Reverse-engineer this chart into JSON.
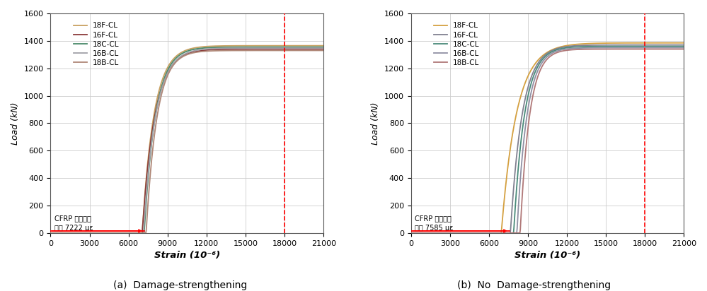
{
  "title_a": "(a)  Damage-strengthening",
  "title_b": "(b)  No  Damage-strengthening",
  "ylabel": "Load (kN)",
  "xlabel": "Strain (10⁻⁶)",
  "xlim": [
    0,
    21000
  ],
  "ylim": [
    0,
    1600
  ],
  "xticks": [
    0,
    3000,
    6000,
    9000,
    12000,
    15000,
    18000,
    21000
  ],
  "yticks": [
    0,
    200,
    400,
    600,
    800,
    1000,
    1200,
    1400,
    1600
  ],
  "vline_x": 18000,
  "annotation_a": "CFRP 긴장보강\n평균 7222 με",
  "annotation_b": "CFRP 긴장보강\n평균 7585 με",
  "hline_x_end_a": 7222,
  "hline_x_end_b": 7585,
  "curves_a": [
    {
      "x_start": 7050,
      "y_final": 1365,
      "k": 0.0011,
      "label": "18F-CL",
      "color": "#c8a060"
    },
    {
      "x_start": 7050,
      "y_final": 1340,
      "k": 0.00105,
      "label": "16F-CL",
      "color": "#8B3A3A"
    },
    {
      "x_start": 7200,
      "y_final": 1355,
      "k": 0.00115,
      "label": "18C-CL",
      "color": "#4a8a6a"
    },
    {
      "x_start": 7150,
      "y_final": 1348,
      "k": 0.00108,
      "label": "16B-CL",
      "color": "#a0a0a8"
    },
    {
      "x_start": 7350,
      "y_final": 1330,
      "k": 0.0012,
      "label": "18B-CL",
      "color": "#b08878"
    }
  ],
  "curves_b": [
    {
      "x_start": 6950,
      "y_final": 1385,
      "k": 0.00085,
      "label": "18F-CL",
      "color": "#d4a040"
    },
    {
      "x_start": 7650,
      "y_final": 1370,
      "k": 0.0011,
      "label": "16F-CL",
      "color": "#808090"
    },
    {
      "x_start": 7900,
      "y_final": 1360,
      "k": 0.0012,
      "label": "18C-CL",
      "color": "#4a8a7a"
    },
    {
      "x_start": 8150,
      "y_final": 1350,
      "k": 0.0013,
      "label": "16B-CL",
      "color": "#9090a4"
    },
    {
      "x_start": 8400,
      "y_final": 1340,
      "k": 0.0014,
      "label": "18B-CL",
      "color": "#b07878"
    }
  ],
  "bg_color": "#ffffff",
  "grid_color": "#cccccc"
}
